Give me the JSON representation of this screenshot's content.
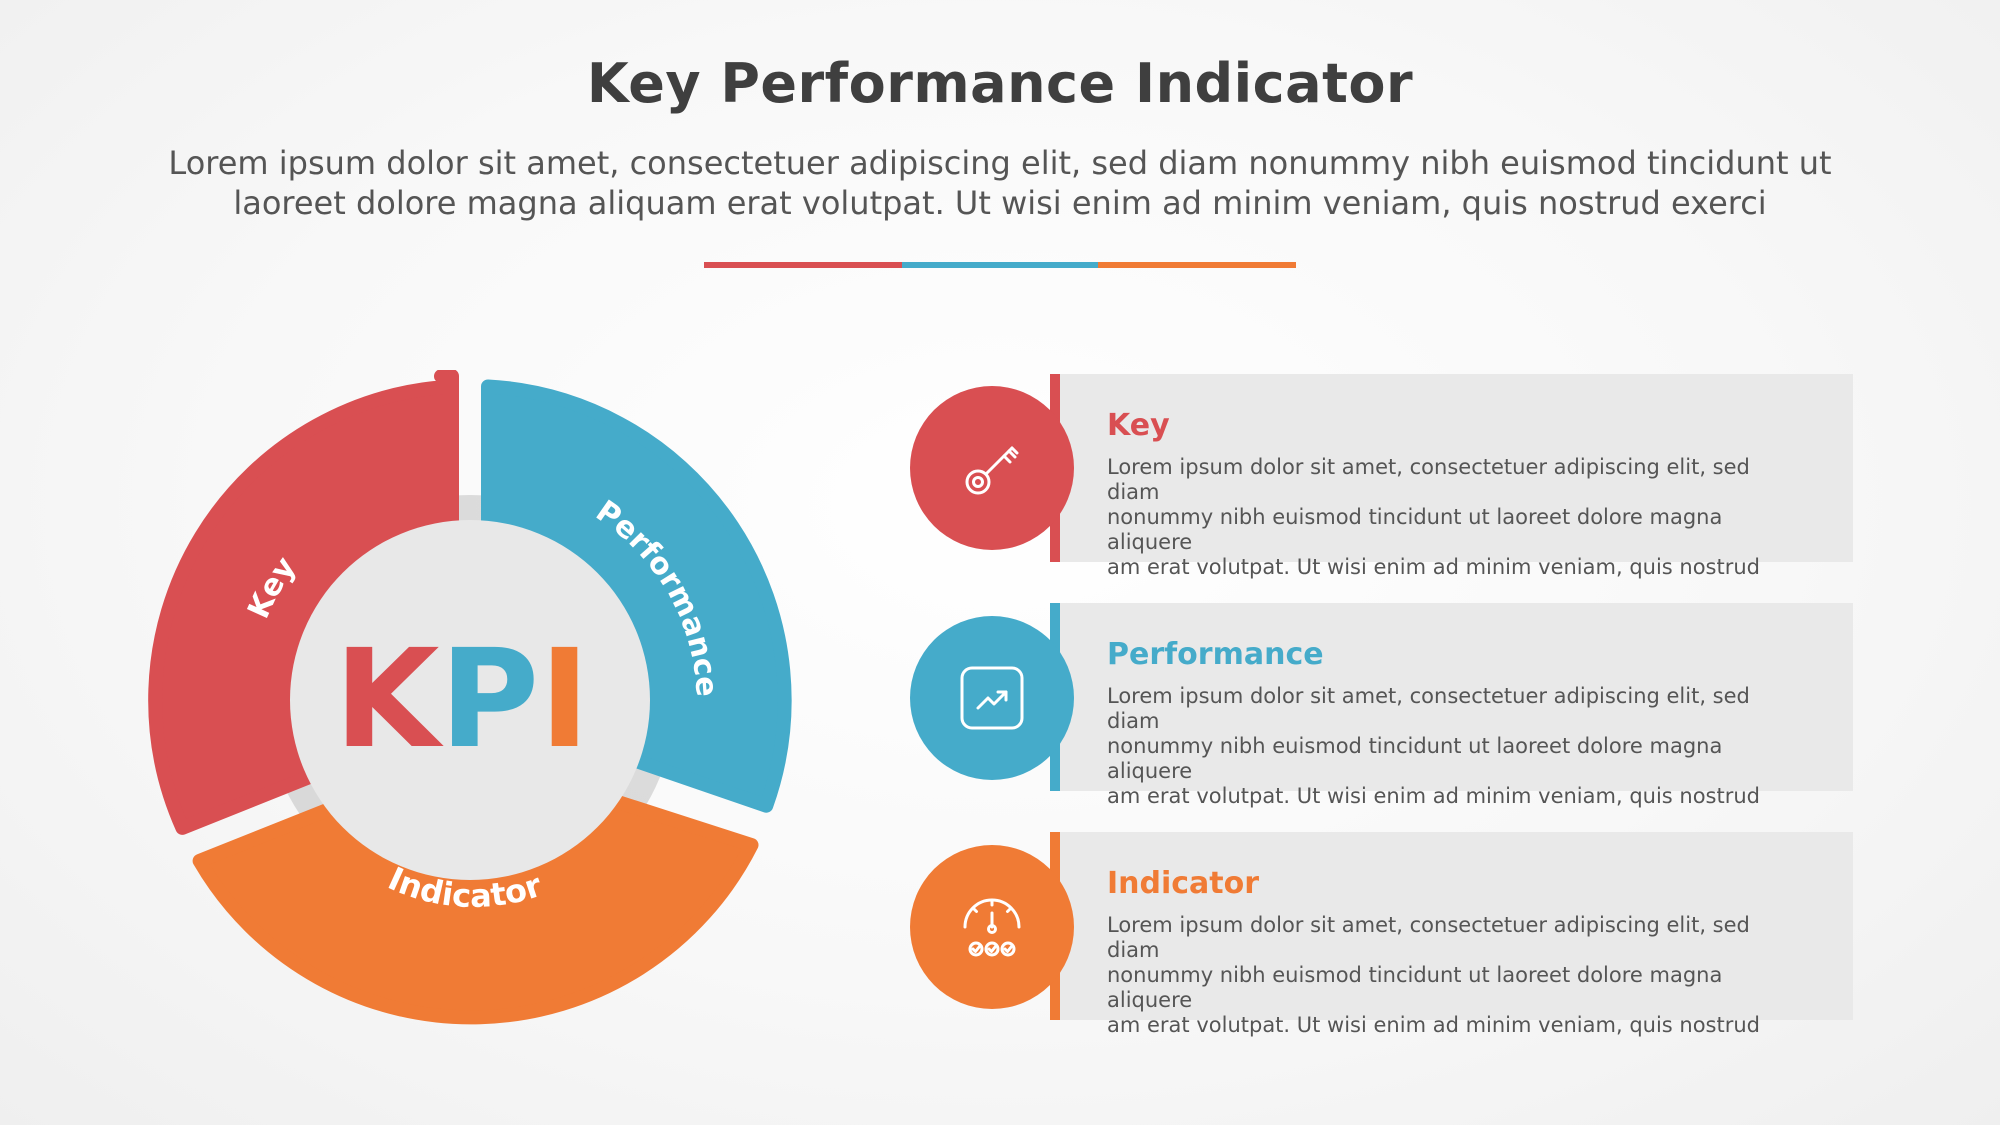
{
  "header": {
    "title": "Key Performance Indicator",
    "subtitle_line1": "Lorem ipsum dolor sit amet, consectetuer adipiscing elit, sed diam nonummy nibh euismod tincidunt ut",
    "subtitle_line2": "laoreet dolore magna aliquam erat volutpat. Ut wisi enim ad minim veniam, quis nostrud exerci"
  },
  "colors": {
    "red": "#d94f52",
    "blue": "#45abca",
    "orange": "#f07b35",
    "center_fill": "#e8e8e8",
    "card_bg": "#e9e9e9",
    "title_text": "#3f3f3f"
  },
  "wheel": {
    "center_letters": [
      "K",
      "P",
      "I"
    ],
    "segments": [
      {
        "label": "Key",
        "color": "red"
      },
      {
        "label": "Performance",
        "color": "blue"
      },
      {
        "label": "Indicator",
        "color": "orange"
      }
    ]
  },
  "items": [
    {
      "title": "Key",
      "icon": "key-icon",
      "color": "red",
      "desc_line1": "Lorem ipsum dolor sit amet, consectetuer adipiscing elit, sed diam",
      "desc_line2": "nonummy nibh euismod tincidunt ut laoreet dolore magna aliquere",
      "desc_line3": "am erat volutpat. Ut wisi enim ad minim veniam, quis nostrud"
    },
    {
      "title": "Performance",
      "icon": "trend-chart-icon",
      "color": "blue",
      "desc_line1": "Lorem ipsum dolor sit amet, consectetuer adipiscing elit, sed diam",
      "desc_line2": "nonummy nibh euismod tincidunt ut laoreet dolore magna aliquere",
      "desc_line3": "am erat volutpat. Ut wisi enim ad minim veniam, quis nostrud"
    },
    {
      "title": "Indicator",
      "icon": "gauge-icon",
      "color": "orange",
      "desc_line1": "Lorem ipsum dolor sit amet, consectetuer adipiscing elit, sed diam",
      "desc_line2": "nonummy nibh euismod tincidunt ut laoreet dolore magna aliquere",
      "desc_line3": "am erat volutpat. Ut wisi enim ad minim veniam, quis nostrud"
    }
  ]
}
